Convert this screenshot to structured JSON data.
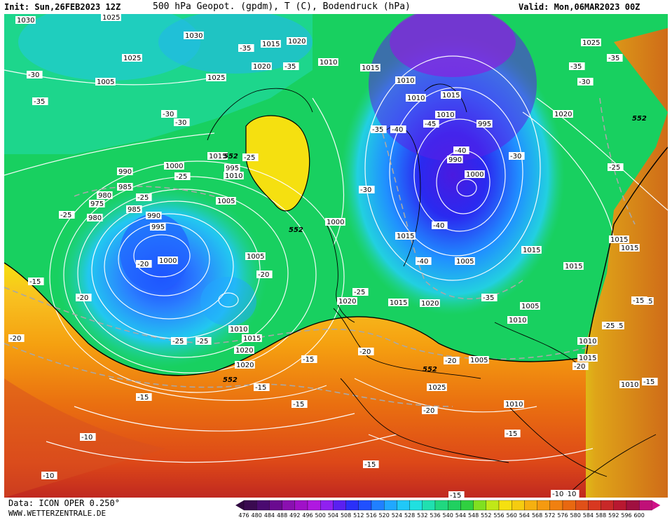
{
  "header": {
    "init": "Init: Sun,26FEB2023 12Z",
    "title": "500 hPa Geopot. (gpdm), T (C), Bodendruck (hPa)",
    "valid": "Valid: Mon,06MAR2023 00Z"
  },
  "footer": {
    "data_source": "Data: ICON OPER 0.250°",
    "website": "WWW.WETTERZENTRALE.DE"
  },
  "colorbar": {
    "ticks": [
      "476",
      "480",
      "484",
      "488",
      "492",
      "496",
      "500",
      "504",
      "508",
      "512",
      "516",
      "520",
      "524",
      "528",
      "532",
      "536",
      "540",
      "544",
      "548",
      "552",
      "556",
      "560",
      "564",
      "568",
      "572",
      "576",
      "580",
      "584",
      "588",
      "592",
      "596",
      "600"
    ]
  },
  "pressure_labels": [
    "1030",
    "1025",
    "1030",
    "1025",
    "1020",
    "1015",
    "1010",
    "1025",
    "1020",
    "1015",
    "1010",
    "1005",
    "1000",
    "995",
    "990",
    "985",
    "980",
    "975",
    "980",
    "985",
    "990",
    "995",
    "1000",
    "1005",
    "1010",
    "1015",
    "1020",
    "1020",
    "1015",
    "1010",
    "1005",
    "1000",
    "995",
    "990",
    "1000",
    "1005",
    "1010",
    "1015",
    "1020",
    "1025",
    "1010",
    "1015",
    "1010",
    "1005",
    "1015",
    "1015",
    "1015",
    "1010",
    "1010",
    "1015",
    "1020",
    "1015",
    "1015",
    "1015",
    "1010",
    "1005",
    "1015",
    "1020",
    "1025"
  ],
  "temperature_labels": [
    "-35",
    "-35",
    "-30",
    "-35",
    "-30",
    "-30",
    "-25",
    "-25",
    "-20",
    "-25",
    "-25",
    "-20",
    "-20",
    "-15",
    "-15",
    "-10",
    "-10",
    "-15",
    "-15",
    "-15",
    "-20",
    "-20",
    "-15",
    "-15",
    "-10",
    "-10",
    "-25",
    "-30",
    "-35",
    "-40",
    "-45",
    "-40",
    "-40",
    "-40",
    "-35",
    "-30",
    "-25",
    "-25",
    "-20",
    "-20",
    "-15",
    "-15",
    "-25",
    "-30",
    "-35",
    "-35",
    "-25",
    "-15",
    "-20"
  ],
  "gpdm_labels": [
    "552",
    "552",
    "552",
    "552",
    "552"
  ]
}
